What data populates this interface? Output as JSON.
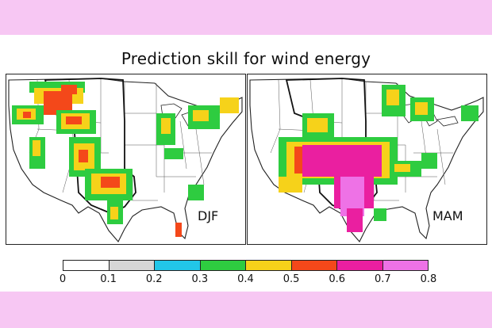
{
  "title": "Prediction skill for wind energy",
  "panels": [
    {
      "season": "DJF"
    },
    {
      "season": "MAM"
    }
  ],
  "colorbar": {
    "ticks": [
      "0",
      "0.1",
      "0.2",
      "0.3",
      "0.4",
      "0.5",
      "0.6",
      "0.7",
      "0.8"
    ],
    "colors": [
      "#ffffff",
      "#d6d6d6",
      "#22c6e8",
      "#2ecc40",
      "#f6d21a",
      "#f4481a",
      "#ea1fa0",
      "#ee72e6"
    ]
  }
}
